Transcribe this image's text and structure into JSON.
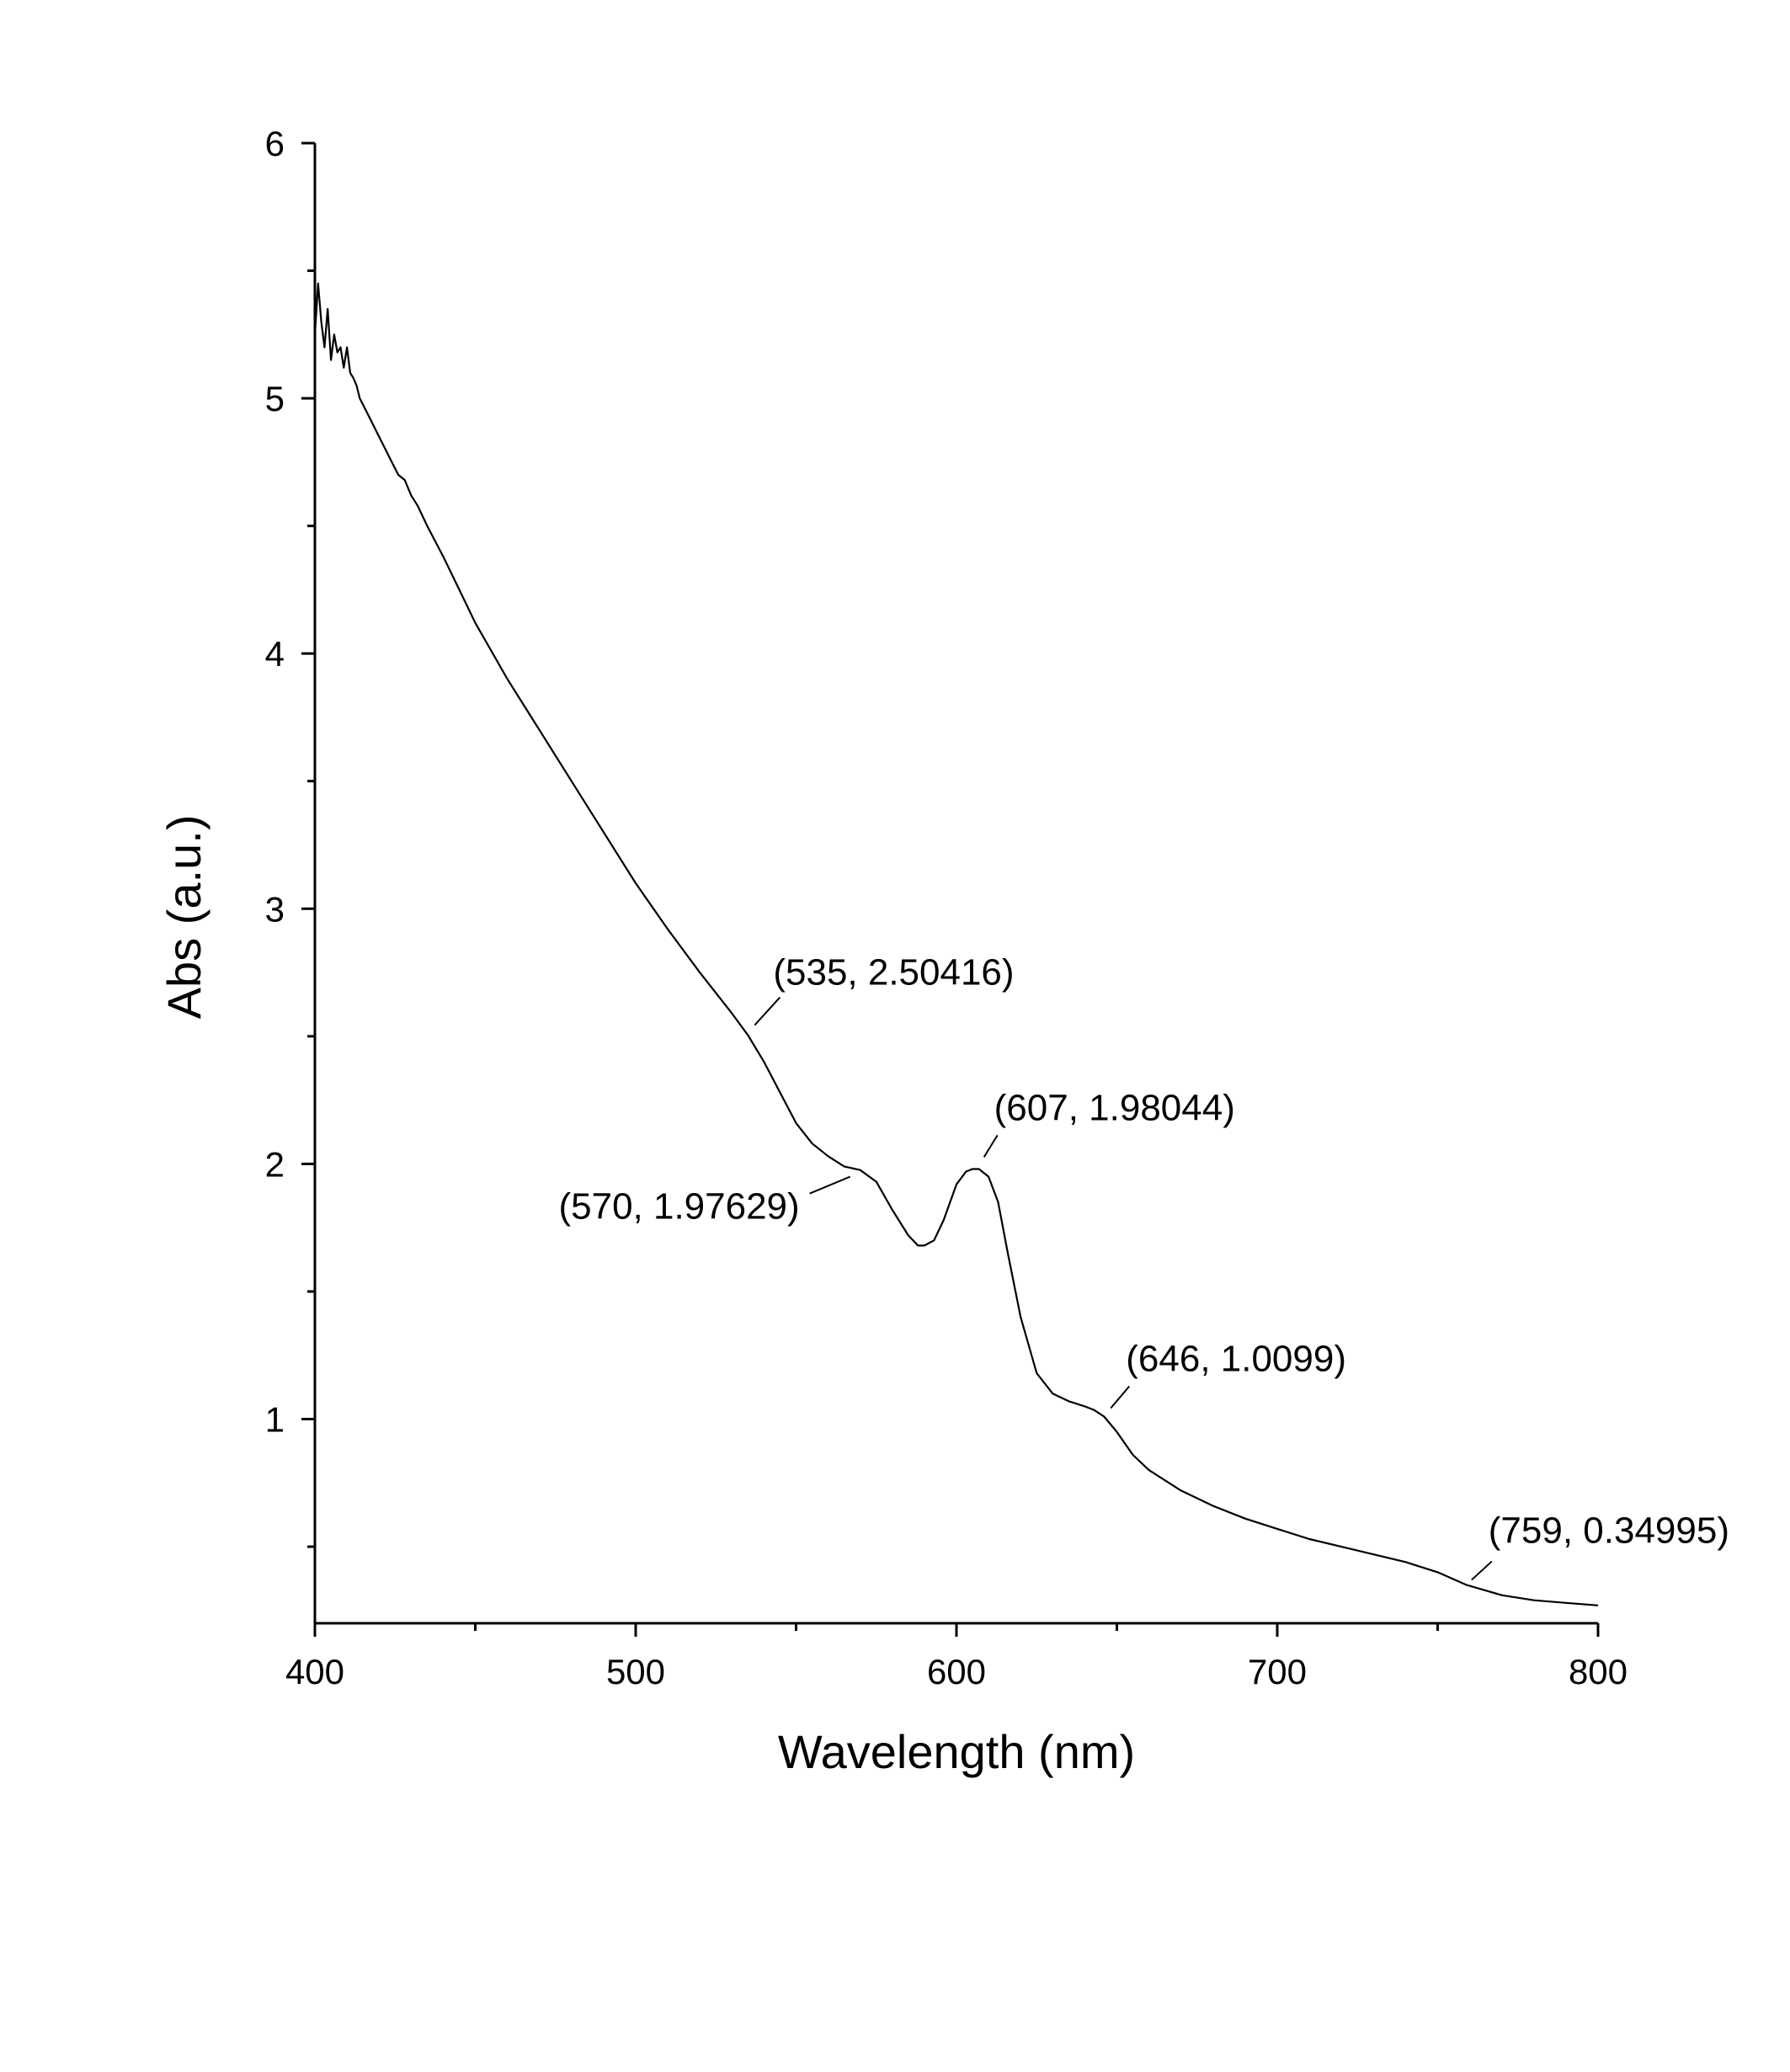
{
  "chart_data": {
    "type": "line",
    "title": "",
    "xlabel": "Wavelength (nm)",
    "ylabel": "Abs (a.u.)",
    "xlim": [
      400,
      800
    ],
    "ylim": [
      0.2,
      6
    ],
    "x_ticks": [
      400,
      500,
      600,
      700,
      800
    ],
    "x_tick_labels": [
      "400",
      "500",
      "600",
      "700",
      "800"
    ],
    "y_ticks": [
      1,
      2,
      3,
      4,
      5,
      6
    ],
    "y_tick_labels": [
      "1",
      "2",
      "3",
      "4",
      "5",
      "6"
    ],
    "grid": false,
    "legend": "none",
    "series": [
      {
        "x": [
          400,
          401,
          402,
          403,
          404,
          405,
          406,
          407,
          408,
          409,
          410,
          411,
          412,
          413,
          414,
          416,
          418,
          420,
          422,
          424,
          426,
          428,
          430,
          432,
          435,
          440,
          445,
          450,
          460,
          470,
          480,
          490,
          500,
          510,
          520,
          530,
          535,
          540,
          545,
          550,
          555,
          560,
          565,
          570,
          575,
          580,
          585,
          588,
          590,
          593,
          596,
          600,
          603,
          605,
          607,
          610,
          613,
          616,
          620,
          625,
          630,
          635,
          640,
          643,
          646,
          650,
          655,
          660,
          670,
          680,
          690,
          700,
          710,
          720,
          730,
          740,
          750,
          759,
          770,
          780,
          790,
          800
        ],
        "y": [
          5.25,
          5.45,
          5.3,
          5.2,
          5.35,
          5.15,
          5.25,
          5.18,
          5.2,
          5.12,
          5.2,
          5.1,
          5.08,
          5.05,
          5.0,
          4.95,
          4.9,
          4.85,
          4.8,
          4.75,
          4.7,
          4.68,
          4.62,
          4.58,
          4.5,
          4.38,
          4.25,
          4.12,
          3.9,
          3.7,
          3.5,
          3.3,
          3.1,
          2.92,
          2.75,
          2.59,
          2.504,
          2.4,
          2.28,
          2.16,
          2.08,
          2.03,
          1.99,
          1.976,
          1.93,
          1.82,
          1.72,
          1.68,
          1.68,
          1.7,
          1.78,
          1.92,
          1.97,
          1.98,
          1.98,
          1.95,
          1.85,
          1.65,
          1.4,
          1.18,
          1.1,
          1.07,
          1.05,
          1.035,
          1.01,
          0.95,
          0.86,
          0.8,
          0.72,
          0.66,
          0.61,
          0.57,
          0.53,
          0.5,
          0.47,
          0.44,
          0.4,
          0.35,
          0.31,
          0.29,
          0.28,
          0.27
        ]
      }
    ],
    "annotations": [
      {
        "text": "(535, 2.50416)",
        "x": 535,
        "y": 2.50416
      },
      {
        "text": "(570, 1.97629)",
        "x": 570,
        "y": 1.97629
      },
      {
        "text": "(607, 1.98044)",
        "x": 607,
        "y": 1.98044
      },
      {
        "text": "(646, 1.0099)",
        "x": 646,
        "y": 1.0099
      },
      {
        "text": "(759, 0.34995)",
        "x": 759,
        "y": 0.34995
      }
    ]
  }
}
